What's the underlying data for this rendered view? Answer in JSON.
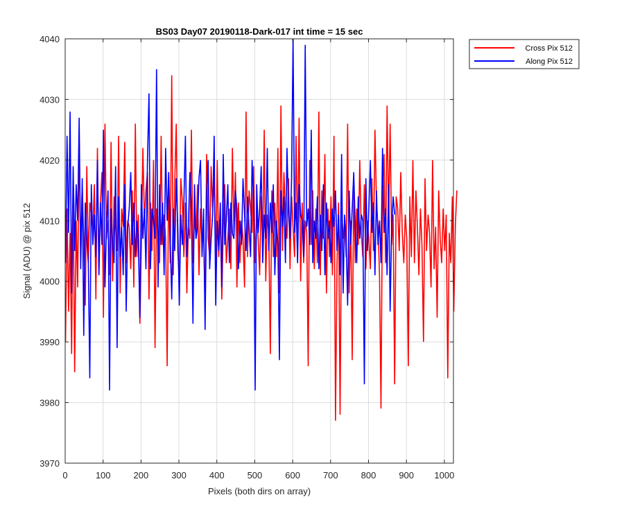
{
  "chart_data": {
    "type": "line",
    "title": "BS03 Day07 20190118-Dark-017 int time = 15 sec",
    "xlabel": "Pixels (both dirs on array)",
    "ylabel": "Signal (ADU) @ pix 512",
    "xlim": [
      0,
      1024
    ],
    "ylim": [
      3970,
      4040
    ],
    "xticks": [
      0,
      100,
      200,
      300,
      400,
      500,
      600,
      700,
      800,
      900,
      1000
    ],
    "yticks": [
      3970,
      3980,
      3990,
      4000,
      4010,
      4020,
      4030,
      4040
    ],
    "grid": true,
    "legend_position": "outside-top-right",
    "x_start": 1,
    "x_step": 4,
    "series": [
      {
        "name": "Cross Pix 512",
        "color": "#ff0000",
        "values": [
          3990,
          4012,
          3995,
          4008,
          3988,
          4015,
          3985,
          4010,
          3999,
          4024,
          4004,
          4016,
          4007,
          3996,
          4019,
          4003,
          4013,
          4011,
          4008,
          4016,
          3997,
          4022,
          4002,
          4013,
          4018,
          3994,
          4026,
          4007,
          4010,
          4001,
          4023,
          4000,
          4014,
          4009,
          4005,
          4024,
          3998,
          4012,
          4009,
          4023,
          4003,
          4010,
          4009,
          4002,
          4015,
          3999,
          4026,
          4004,
          4011,
          3993,
          4006,
          4022,
          4010,
          4015,
          4018,
          3997,
          4013,
          4005,
          4020,
          3989,
          4012,
          4007,
          4003,
          4024,
          4006,
          4011,
          4007,
          3986,
          4018,
          4003,
          4034,
          4001,
          4016,
          4026,
          4005,
          4000,
          4017,
          4013,
          4004,
          4013,
          3998,
          4009,
          4007,
          4025,
          4003,
          4011,
          4007,
          4016,
          4001,
          4012,
          4006,
          4009,
          3995,
          4021,
          4007,
          4004,
          4019,
          4012,
          4017,
          4002,
          4020,
          4004,
          4012,
          3997,
          4009,
          4016,
          4003,
          4007,
          4012,
          4002,
          4022,
          4008,
          4018,
          3999,
          4013,
          4003,
          4010,
          4007,
          3999,
          4028,
          4004,
          4015,
          4012,
          4008,
          4019,
          4003,
          4011,
          4007,
          4001,
          4014,
          4006,
          4025,
          4000,
          4011,
          4008,
          3988,
          4015,
          4004,
          4013,
          4004,
          4022,
          3998,
          4029,
          4005,
          4018,
          4011,
          4007,
          4017,
          4002,
          4014,
          4009,
          4004,
          4024,
          4006,
          4027,
          4000,
          4013,
          4003,
          4010,
          4008,
          3986,
          4020,
          4006,
          4015,
          4002,
          4012,
          4003,
          4028,
          4001,
          4015,
          4007,
          4021,
          3998,
          4012,
          4004,
          4014,
          4001,
          4024,
          3977,
          4003,
          4013,
          3978,
          4012,
          4007,
          4010,
          4004,
          4026,
          3998,
          4010,
          3987,
          4015,
          4003,
          4012,
          4006,
          4020,
          4008,
          4004,
          4016,
          4002,
          4010,
          4007,
          4002,
          4017,
          4005,
          4025,
          4013,
          4009,
          4001,
          3979,
          4015,
          4021,
          4003,
          4029,
          4010,
          4026,
          4006,
          4011,
          3983,
          4014,
          4012,
          4005,
          4018,
          4008,
          4003,
          4011,
          4007,
          3986,
          4014,
          4004,
          4020,
          4003,
          4015,
          4009,
          4001,
          4012,
          4006,
          3990,
          4017,
          4005,
          4011,
          4008,
          3999,
          4020,
          4002,
          4009,
          3994,
          4015,
          4007,
          4003,
          4012,
          4005,
          4011,
          3984,
          4008,
          4003,
          4014,
          3995,
          4009,
          4015
        ]
      },
      {
        "name": "Along Pix 512",
        "color": "#0000ff",
        "values": [
          4003,
          4024,
          4008,
          4028,
          3998,
          4019,
          4005,
          4016,
          4010,
          4027,
          4002,
          4017,
          3991,
          4013,
          4007,
          4003,
          3984,
          4016,
          4006,
          4011,
          4004,
          4020,
          4001,
          4013,
          4006,
          4025,
          3999,
          4009,
          4015,
          3982,
          4012,
          4006,
          4003,
          4019,
          3989,
          4014,
          4004,
          4009,
          4001,
          4016,
          3995,
          4009,
          4012,
          4018,
          4006,
          4013,
          4004,
          4010,
          4007,
          3994,
          4016,
          4007,
          4012,
          4002,
          4020,
          4031,
          4002,
          4012,
          4010,
          4007,
          4035,
          3999,
          4016,
          4006,
          4013,
          4001,
          4022,
          4010,
          4018,
          4007,
          3997,
          4012,
          4005,
          4017,
          4009,
          3996,
          4011,
          4006,
          4013,
          4024,
          4004,
          4009,
          4018,
          4012,
          3993,
          4016,
          4007,
          4009,
          4017,
          4020,
          4004,
          4012,
          3992,
          4014,
          4020,
          4002,
          4007,
          4011,
          4024,
          3996,
          4010,
          4005,
          4013,
          3999,
          4021,
          4006,
          4010,
          4016,
          4003,
          4013,
          4008,
          4007,
          4015,
          4012,
          4002,
          4010,
          4006,
          4017,
          4011,
          4005,
          4014,
          4009,
          4004,
          4020,
          4013,
          3982,
          4016,
          4008,
          4012,
          4019,
          4003,
          4011,
          4007,
          4022,
          4005,
          4013,
          4008,
          4016,
          4001,
          4010,
          4006,
          3987,
          4015,
          4009,
          4014,
          4003,
          4022,
          4012,
          4007,
          4017,
          4040,
          4008,
          4013,
          4003,
          4016,
          4011,
          4010,
          4004,
          4039,
          4009,
          4012,
          4006,
          4025,
          4003,
          4010,
          4007,
          4014,
          4002,
          4011,
          4005,
          4016,
          4001,
          4013,
          4007,
          4010,
          4003,
          4012,
          4009,
          4015,
          4005,
          4011,
          4001,
          4021,
          3998,
          4011,
          4007,
          3996,
          4015,
          4006,
          4012,
          4018,
          4009,
          4003,
          4014,
          4007,
          4011,
          4010,
          3983,
          4017,
          4005,
          4012,
          4020,
          4008,
          4013,
          4001,
          4015,
          4006,
          4010,
          4003,
          4022,
          4008,
          4012,
          4001,
          4016,
          3995,
          4009,
          4014,
          4011
        ]
      }
    ]
  }
}
